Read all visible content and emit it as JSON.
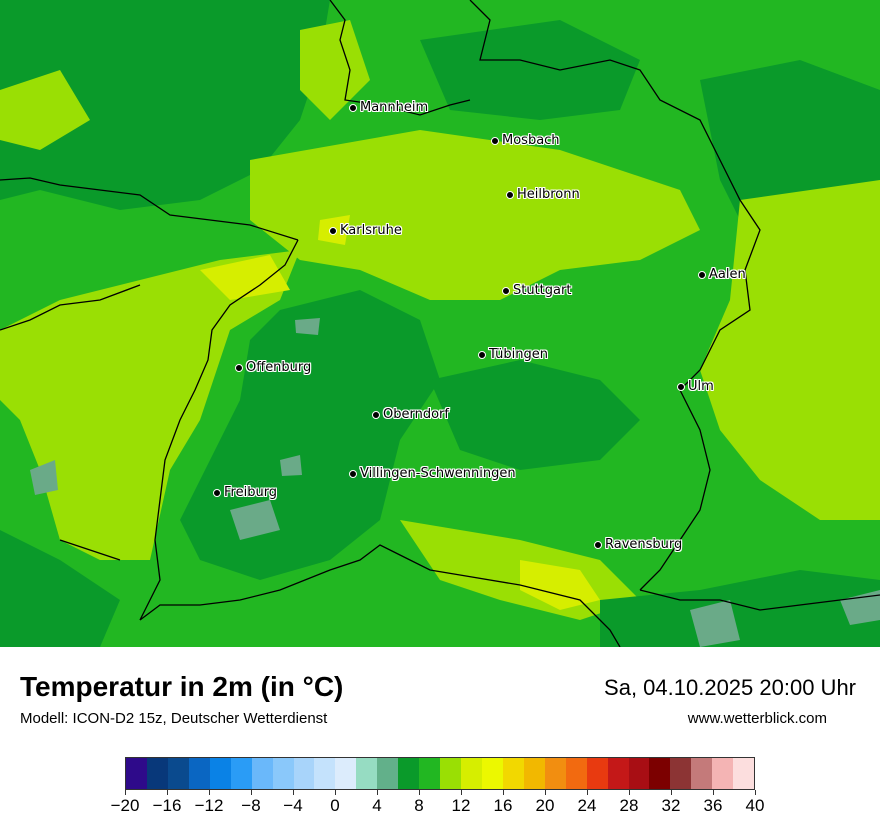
{
  "map": {
    "cities": [
      {
        "id": "mannheim",
        "name": "Mannheim"
      },
      {
        "id": "mosbach",
        "name": "Mosbach"
      },
      {
        "id": "heilbronn",
        "name": "Heilbronn"
      },
      {
        "id": "karlsruhe",
        "name": "Karlsruhe"
      },
      {
        "id": "aalen",
        "name": "Aalen"
      },
      {
        "id": "stuttgart",
        "name": "Stuttgart"
      },
      {
        "id": "tuebingen",
        "name": "Tübingen"
      },
      {
        "id": "offenburg",
        "name": "Offenburg"
      },
      {
        "id": "ulm",
        "name": "Ulm"
      },
      {
        "id": "oberndorf",
        "name": "Oberndorf"
      },
      {
        "id": "villingen",
        "name": "Villingen-Schwenningen"
      },
      {
        "id": "freiburg",
        "name": "Freiburg"
      },
      {
        "id": "ravensburg",
        "name": "Ravensburg"
      }
    ],
    "colors": {
      "dark_green": "#0a9a2a",
      "mid_green": "#22b722",
      "light_green": "#9adf04",
      "yellow_green": "#d6ee00",
      "gray_green": "#6aaa88"
    }
  },
  "footer": {
    "title": "Temperatur in 2m (in °C)",
    "subtitle": "Modell: ICON-D2 15z, Deutscher Wetterdienst",
    "datetime": "Sa, 04.10.2025 20:00 Uhr",
    "website": "www.wetterblick.com"
  },
  "legend": {
    "min": -20,
    "max": 40,
    "step": 2,
    "colors": [
      "#2e0a8a",
      "#08387a",
      "#0a4a8e",
      "#0a66c2",
      "#0a82e6",
      "#2a9cf6",
      "#6ab8fa",
      "#8ac8fa",
      "#a8d4fa",
      "#c4e2fc",
      "#dcecfc",
      "#96dcc2",
      "#62b08a",
      "#0a9a2a",
      "#22b722",
      "#9adf04",
      "#d6ee00",
      "#ecf800",
      "#f2d800",
      "#f2b800",
      "#f28e10",
      "#f26a10",
      "#e83a10",
      "#c41818",
      "#a80e14",
      "#7c0000",
      "#8c3434",
      "#c47a7a",
      "#f4b4b4",
      "#fcdede"
    ],
    "tick_labels": [
      "−20",
      "−16",
      "−12",
      "−8",
      "−4",
      "0",
      "4",
      "8",
      "12",
      "16",
      "20",
      "24",
      "28",
      "32",
      "36",
      "40"
    ],
    "tick_values": [
      -20,
      -16,
      -12,
      -8,
      -4,
      0,
      4,
      8,
      12,
      16,
      20,
      24,
      28,
      32,
      36,
      40
    ]
  }
}
